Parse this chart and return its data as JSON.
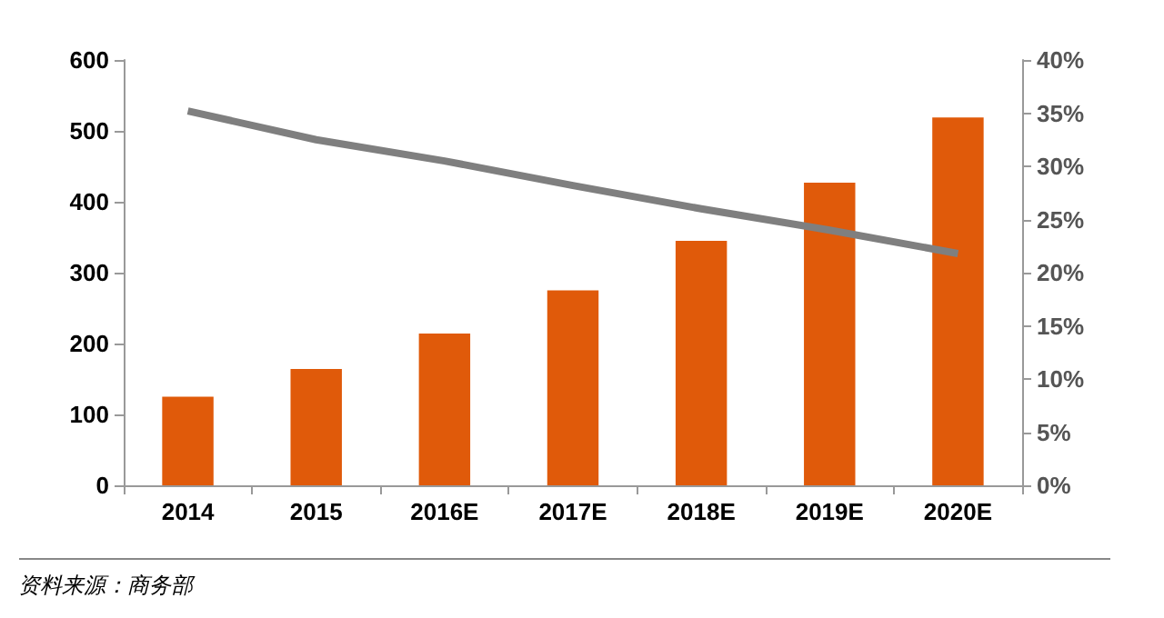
{
  "chart_data": {
    "type": "bar",
    "categories": [
      "2014",
      "2015",
      "2016E",
      "2017E",
      "2018E",
      "2019E",
      "2020E"
    ],
    "series": [
      {
        "color": "#e05a0a",
        "values": [
          125,
          164,
          214,
          275,
          345,
          427,
          519
        ]
      },
      {
        "type": "line",
        "axis": "y2",
        "color": "#7f7f7f",
        "values": [
          35.2,
          32.5,
          30.5,
          28.2,
          26,
          24,
          21.8
        ]
      }
    ],
    "ylim": [
      0,
      600
    ],
    "yticks": [
      0,
      100,
      200,
      300,
      400,
      500,
      600
    ],
    "y2lim": [
      0,
      40
    ],
    "y2ticks": [
      {
        "value": 0,
        "label": "0%"
      },
      {
        "value": 5,
        "label": "5%"
      },
      {
        "value": 10,
        "label": "10%"
      },
      {
        "value": 15,
        "label": "15%"
      },
      {
        "value": 20,
        "label": "20%"
      },
      {
        "value": 25,
        "label": "25%"
      },
      {
        "value": 30,
        "label": "30%"
      },
      {
        "value": 35,
        "label": "35%"
      },
      {
        "value": 40,
        "label": "40%"
      }
    ],
    "grid": false,
    "marker": "none",
    "annotations": [
      "资料来源：商务部"
    ]
  }
}
